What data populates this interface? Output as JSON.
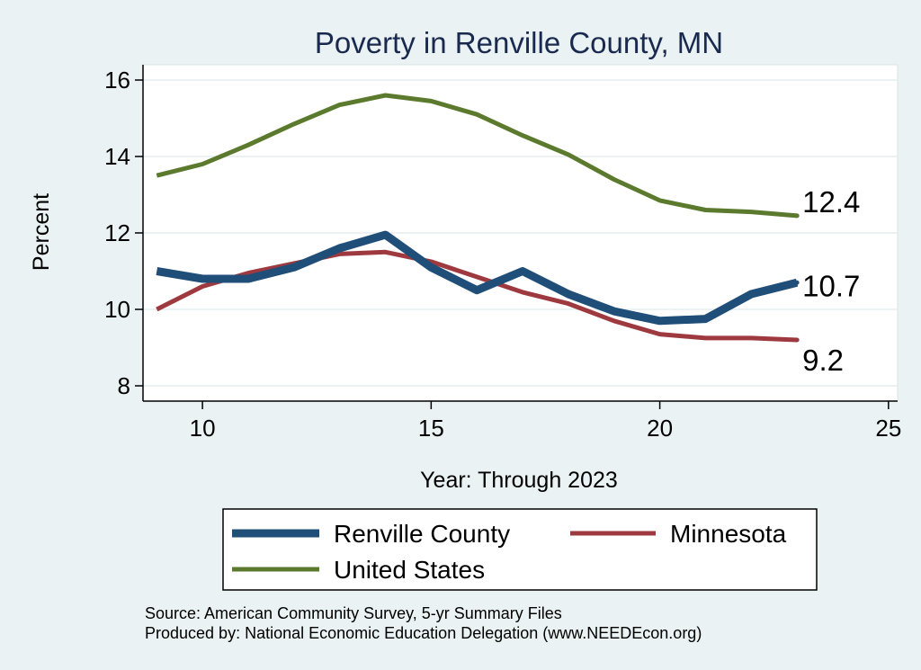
{
  "chart_data": {
    "type": "line",
    "title": "Poverty in Renville County, MN",
    "xlabel": "Year: Through 2023",
    "ylabel": "Percent",
    "xlim": [
      8.7,
      25.2
    ],
    "ylim": [
      7.6,
      16.4
    ],
    "xticks": [
      10,
      15,
      20,
      25
    ],
    "yticks": [
      8,
      10,
      12,
      14,
      16
    ],
    "grid": true,
    "legend_position": "bottom",
    "series": [
      {
        "name": "Renville County",
        "color": "#1f4e79",
        "x": [
          9,
          10,
          11,
          12,
          13,
          14,
          15,
          16,
          17,
          18,
          19,
          20,
          21,
          22,
          23
        ],
        "values": [
          11.0,
          10.8,
          10.8,
          11.1,
          11.6,
          11.95,
          11.1,
          10.5,
          11.0,
          10.4,
          9.95,
          9.7,
          9.75,
          10.4,
          10.7
        ],
        "end_label": "10.7"
      },
      {
        "name": "Minnesota",
        "color": "#9e3a3f",
        "x": [
          9,
          10,
          11,
          12,
          13,
          14,
          15,
          16,
          17,
          18,
          19,
          20,
          21,
          22,
          23
        ],
        "values": [
          10.0,
          10.6,
          10.95,
          11.2,
          11.45,
          11.5,
          11.25,
          10.85,
          10.45,
          10.15,
          9.7,
          9.35,
          9.25,
          9.25,
          9.2
        ],
        "end_label": "9.2"
      },
      {
        "name": "United States",
        "color": "#5b7a2e",
        "x": [
          9,
          10,
          11,
          12,
          13,
          14,
          15,
          16,
          17,
          18,
          19,
          20,
          21,
          22,
          23
        ],
        "values": [
          13.5,
          13.8,
          14.3,
          14.85,
          15.35,
          15.6,
          15.45,
          15.1,
          14.55,
          14.05,
          13.4,
          12.85,
          12.6,
          12.55,
          12.45
        ],
        "end_label": "12.4"
      }
    ]
  },
  "source_lines": [
    "Source: American Community Survey, 5-yr Summary Files",
    "Produced by: National Economic Education Delegation (www.NEEDEcon.org)"
  ]
}
